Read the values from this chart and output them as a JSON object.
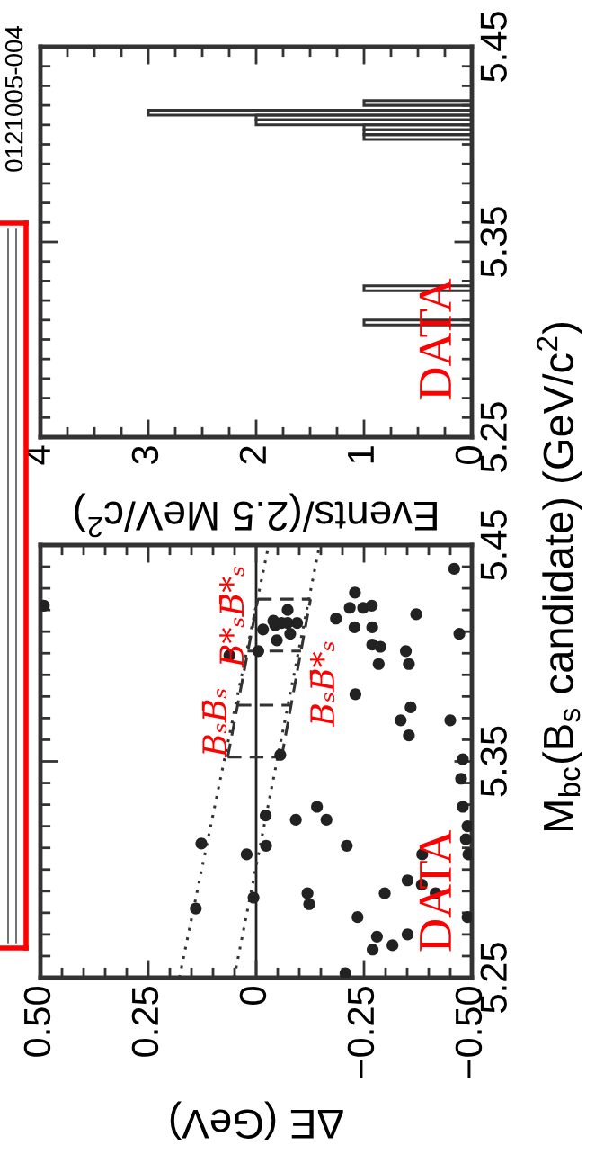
{
  "chart_data": [
    {
      "type": "scatter",
      "xlabel": "ΔE (GeV)",
      "ylabel": "M$_{bc}$(B$_{s}$ candidate) (GeV/c$^{2}$)",
      "xlim": [
        0.5,
        -0.5
      ],
      "xticks": [
        {
          "value": 0.5,
          "label": "0.50"
        },
        {
          "value": 0.25,
          "label": "0.25"
        },
        0,
        {
          "value": -0.25,
          "label": "−0.25"
        },
        {
          "value": -0.5,
          "label": "−0.50"
        },
        {
          "value": 0.45,
          "label": null
        },
        {
          "value": 0.4,
          "label": null
        },
        {
          "value": 0.35,
          "label": null
        },
        {
          "value": 0.3,
          "label": null
        },
        {
          "value": 0.2,
          "label": null
        },
        {
          "value": 0.15,
          "label": null
        },
        {
          "value": 0.1,
          "label": null
        },
        {
          "value": 0.05,
          "label": null
        },
        {
          "value": -0.05,
          "label": null
        },
        {
          "value": -0.1,
          "label": null
        },
        {
          "value": -0.15,
          "label": null
        },
        {
          "value": -0.2,
          "label": null
        },
        {
          "value": -0.3,
          "label": null
        },
        {
          "value": -0.35,
          "label": null
        },
        {
          "value": -0.4,
          "label": null
        },
        {
          "value": -0.45,
          "label": null
        }
      ],
      "ylim": [
        5.25,
        5.45
      ],
      "yticks": [
        5.25,
        5.35,
        5.45,
        {
          "value": 5.26,
          "label": null
        },
        {
          "value": 5.27,
          "label": null
        },
        {
          "value": 5.28,
          "label": null
        },
        {
          "value": 5.29,
          "label": null
        },
        {
          "value": 5.3,
          "label": null
        },
        {
          "value": 5.31,
          "label": null
        },
        {
          "value": 5.32,
          "label": null
        },
        {
          "value": 5.33,
          "label": null
        },
        {
          "value": 5.34,
          "label": null
        },
        {
          "value": 5.36,
          "label": null
        },
        {
          "value": 5.37,
          "label": null
        },
        {
          "value": 5.38,
          "label": null
        },
        {
          "value": 5.39,
          "label": null
        },
        {
          "value": 5.4,
          "label": null
        },
        {
          "value": 5.41,
          "label": null
        },
        {
          "value": 5.42,
          "label": null
        },
        {
          "value": 5.43,
          "label": null
        },
        {
          "value": 5.44,
          "label": null
        }
      ],
      "series": [
        {
          "type": "scatter",
          "color": "#222222",
          "marker": "circle",
          "x": [
            0.492,
            -0.459,
            -0.229,
            -0.217,
            -0.248,
            -0.268,
            -0.185,
            -0.228,
            -0.269,
            -0.371,
            -0.471,
            -0.269,
            -0.288,
            -0.347,
            -0.284,
            -0.354,
            -0.073,
            -0.04,
            -0.044,
            -0.059,
            -0.073,
            -0.095,
            -0.016,
            -0.079,
            -0.048,
            -0.005,
            0.062,
            -0.23,
            -0.358,
            -0.335,
            -0.45,
            -0.354,
            -0.056,
            -0.479,
            -0.475,
            -0.141,
            -0.022,
            -0.163,
            -0.092,
            -0.479,
            -0.49,
            -0.486,
            -0.492,
            0.127,
            0.022,
            -0.023,
            -0.21,
            -0.385,
            -0.351,
            -0.384,
            -0.416,
            -0.298,
            -0.119,
            -0.123,
            0.006,
            0.14,
            -0.235,
            -0.49,
            -0.28,
            -0.351,
            -0.316,
            -0.27,
            -0.207
          ],
          "values": [
            5.422,
            5.439,
            5.428,
            5.421,
            5.421,
            5.422,
            5.416,
            5.412,
            5.412,
            5.418,
            5.409,
            5.404,
            5.403,
            5.401,
            5.395,
            5.395,
            5.42,
            5.415,
            5.413,
            5.414,
            5.414,
            5.414,
            5.411,
            5.409,
            5.406,
            5.401,
            5.399,
            5.381,
            5.375,
            5.369,
            5.369,
            5.362,
            5.353,
            5.351,
            5.342,
            5.329,
            5.325,
            5.323,
            5.323,
            5.329,
            5.32,
            5.314,
            5.307,
            5.312,
            5.307,
            5.311,
            5.311,
            5.307,
            5.295,
            5.293,
            5.289,
            5.289,
            5.289,
            5.284,
            5.287,
            5.282,
            5.278,
            5.278,
            5.269,
            5.27,
            5.265,
            5.263,
            5.252
          ]
        },
        {
          "type": "line",
          "color": "#333333",
          "line_style": "dotted",
          "marker": "none",
          "x": [
            0.178,
            -0.029
          ],
          "values": [
            5.25,
            5.45
          ]
        },
        {
          "type": "line",
          "color": "#333333",
          "line_style": "dotted",
          "marker": "none",
          "x": [
            0.051,
            -0.147
          ],
          "values": [
            5.25,
            5.45
          ]
        },
        {
          "type": "line",
          "color": "#333333",
          "line_style": "dashed",
          "marker": "none",
          "x": [
            0.066,
            -0.004
          ],
          "values": [
            5.352,
            5.425
          ]
        },
        {
          "type": "line",
          "color": "#333333",
          "line_style": "dashed",
          "marker": "none",
          "x": [
            -0.059,
            -0.126
          ],
          "values": [
            5.352,
            5.425
          ]
        },
        {
          "type": "line",
          "color": "#333333",
          "line_style": "dashed",
          "marker": "none",
          "x": [
            0.066,
            -0.059
          ],
          "values": [
            5.352,
            5.352
          ]
        },
        {
          "type": "line",
          "color": "#333333",
          "line_style": "dashed",
          "marker": "none",
          "x": [
            0.043,
            -0.081
          ],
          "values": [
            5.376,
            5.376
          ]
        },
        {
          "type": "line",
          "color": "#333333",
          "line_style": "dashed",
          "marker": "none",
          "x": [
            0.02,
            -0.104
          ],
          "values": [
            5.401,
            5.401
          ]
        },
        {
          "type": "line",
          "color": "#333333",
          "line_style": "dashed",
          "marker": "none",
          "x": [
            -0.004,
            -0.126
          ],
          "values": [
            5.425,
            5.425
          ]
        }
      ],
      "ref_lines": [
        {
          "axis": "x",
          "value": 0,
          "color": "#222222"
        }
      ],
      "annotations": [
        "DATA",
        "BₛB̄ₛ",
        "B*ₛB̄*ₛ",
        "BₛB̄*ₛ"
      ]
    },
    {
      "type": "histogram",
      "orientation": "horizontal",
      "color": "#333333",
      "xlabel": "Events/(2.5 MeV/c$^{2}$)",
      "bins": [
        5.3,
        5.3025,
        5.305,
        5.3075,
        5.31,
        5.3125,
        5.315,
        5.3175,
        5.32,
        5.3225,
        5.325,
        5.3275,
        5.33,
        5.3325,
        5.335,
        5.3375,
        5.34,
        5.3425,
        5.345,
        5.3475,
        5.35,
        5.3525,
        5.355,
        5.3575,
        5.36,
        5.3625,
        5.365,
        5.3675,
        5.37,
        5.3725,
        5.375,
        5.3775,
        5.38,
        5.3825,
        5.385,
        5.3875,
        5.39,
        5.3925,
        5.395,
        5.3975,
        5.4,
        5.4025,
        5.405,
        5.4075,
        5.41,
        5.4125,
        5.415,
        5.4175,
        5.42,
        5.4225,
        5.425
      ],
      "values": [
        0,
        0,
        0,
        1,
        0,
        0,
        0,
        0,
        0,
        0,
        1,
        0,
        0,
        0,
        0,
        0,
        0,
        0,
        0,
        0,
        0,
        0,
        0,
        0,
        0,
        0,
        0,
        0,
        0,
        0,
        0,
        0,
        0,
        0,
        0,
        0,
        0,
        0,
        0,
        0,
        0,
        1,
        1,
        1,
        2,
        2,
        3,
        0,
        1,
        0
      ],
      "xlim": [
        4,
        0
      ],
      "xticks": [
        0,
        1,
        2,
        3,
        4,
        {
          "value": 0.25,
          "label": null
        },
        {
          "value": 0.5,
          "label": null
        },
        {
          "value": 0.75,
          "label": null
        },
        {
          "value": 1.25,
          "label": null
        },
        {
          "value": 1.5,
          "label": null
        },
        {
          "value": 1.75,
          "label": null
        },
        {
          "value": 2.25,
          "label": null
        },
        {
          "value": 2.5,
          "label": null
        },
        {
          "value": 2.75,
          "label": null
        },
        {
          "value": 3.25,
          "label": null
        },
        {
          "value": 3.5,
          "label": null
        },
        {
          "value": 3.75,
          "label": null
        }
      ],
      "ylim": [
        5.25,
        5.45
      ],
      "yticks": [
        5.25,
        5.35,
        5.45,
        {
          "value": 5.26,
          "label": null
        },
        {
          "value": 5.27,
          "label": null
        },
        {
          "value": 5.28,
          "label": null
        },
        {
          "value": 5.29,
          "label": null
        },
        {
          "value": 5.3,
          "label": null
        },
        {
          "value": 5.31,
          "label": null
        },
        {
          "value": 5.32,
          "label": null
        },
        {
          "value": 5.33,
          "label": null
        },
        {
          "value": 5.34,
          "label": null
        },
        {
          "value": 5.36,
          "label": null
        },
        {
          "value": 5.37,
          "label": null
        },
        {
          "value": 5.38,
          "label": null
        },
        {
          "value": 5.39,
          "label": null
        },
        {
          "value": 5.4,
          "label": null
        },
        {
          "value": 5.41,
          "label": null
        },
        {
          "value": 5.42,
          "label": null
        },
        {
          "value": 5.43,
          "label": null
        },
        {
          "value": 5.44,
          "label": null
        }
      ],
      "annotations": [
        "DATA",
        "0121005-004"
      ]
    }
  ]
}
